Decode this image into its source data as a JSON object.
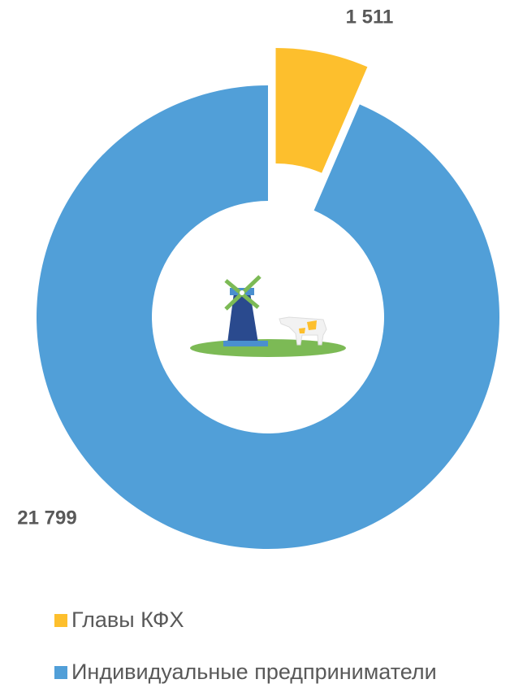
{
  "chart_data": {
    "type": "donut",
    "categories": [
      "Главы КФХ",
      "Индивидуальные предприниматели"
    ],
    "values": [
      1511,
      21799
    ],
    "value_labels": [
      "1 511",
      "21 799"
    ],
    "colors": [
      "#fdbf2d",
      "#519fd8"
    ],
    "explode": [
      true,
      false
    ],
    "legend": "bottom"
  }
}
